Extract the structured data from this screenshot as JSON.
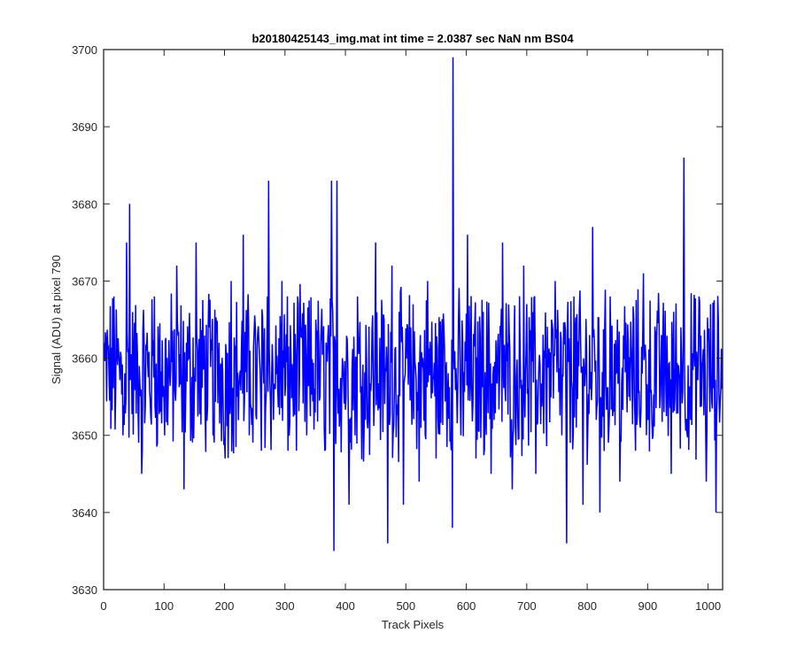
{
  "chart_data": {
    "type": "line",
    "title": "b20180425143_img.mat int time = 2.0387 sec  NaN nm BS04",
    "xlabel": "Track Pixels",
    "ylabel": "Signal (ADU) at pixel 790",
    "xlim": [
      0,
      1024
    ],
    "ylim": [
      3630,
      3700
    ],
    "xticks": [
      0,
      100,
      200,
      300,
      400,
      500,
      600,
      700,
      800,
      900,
      1000
    ],
    "yticks": [
      3630,
      3640,
      3650,
      3660,
      3670,
      3680,
      3690,
      3700
    ],
    "grid": false,
    "legend": "none",
    "series": [
      {
        "color": "#0000ff",
        "x": [
          1,
          17,
          32,
          38,
          43,
          63,
          84,
          101,
          121,
          129,
          133,
          141,
          153,
          181,
          191,
          201,
          211,
          221,
          231,
          241,
          251,
          261,
          271,
          273,
          284,
          295,
          305,
          321,
          336,
          351,
          366,
          377,
          381,
          386,
          395,
          406,
          420,
          433,
          450,
          470,
          477,
          496,
          508,
          522,
          536,
          550,
          563,
          577,
          578,
          591,
          602,
          616,
          628,
          641,
          660,
          676,
          695,
          715,
          730,
          747,
          758,
          766,
          778,
          793,
          809,
          821,
          838,
          854,
          868,
          880,
          893,
          909,
          923,
          939,
          955,
          960,
          971,
          985,
          997,
          1005,
          1013,
          1023
        ],
        "y": [
          3662,
          3668,
          3650,
          3675,
          3680,
          3645,
          3668,
          3650,
          3672,
          3656,
          3643,
          3660,
          3675,
          3650,
          3662,
          3647,
          3670,
          3655,
          3676,
          3650,
          3664,
          3648,
          3668,
          3683,
          3656,
          3670,
          3648,
          3668,
          3650,
          3665,
          3648,
          3683,
          3635,
          3683,
          3660,
          3641,
          3668,
          3652,
          3675,
          3636,
          3672,
          3641,
          3664,
          3644,
          3670,
          3647,
          3664,
          3638,
          3699,
          3650,
          3676,
          3647,
          3666,
          3645,
          3675,
          3643,
          3672,
          3645,
          3660,
          3670,
          3650,
          3636,
          3668,
          3641,
          3677,
          3640,
          3668,
          3644,
          3662,
          3648,
          3671,
          3650,
          3663,
          3645,
          3664,
          3686,
          3652,
          3668,
          3644,
          3658,
          3640,
          3656
        ]
      }
    ]
  }
}
